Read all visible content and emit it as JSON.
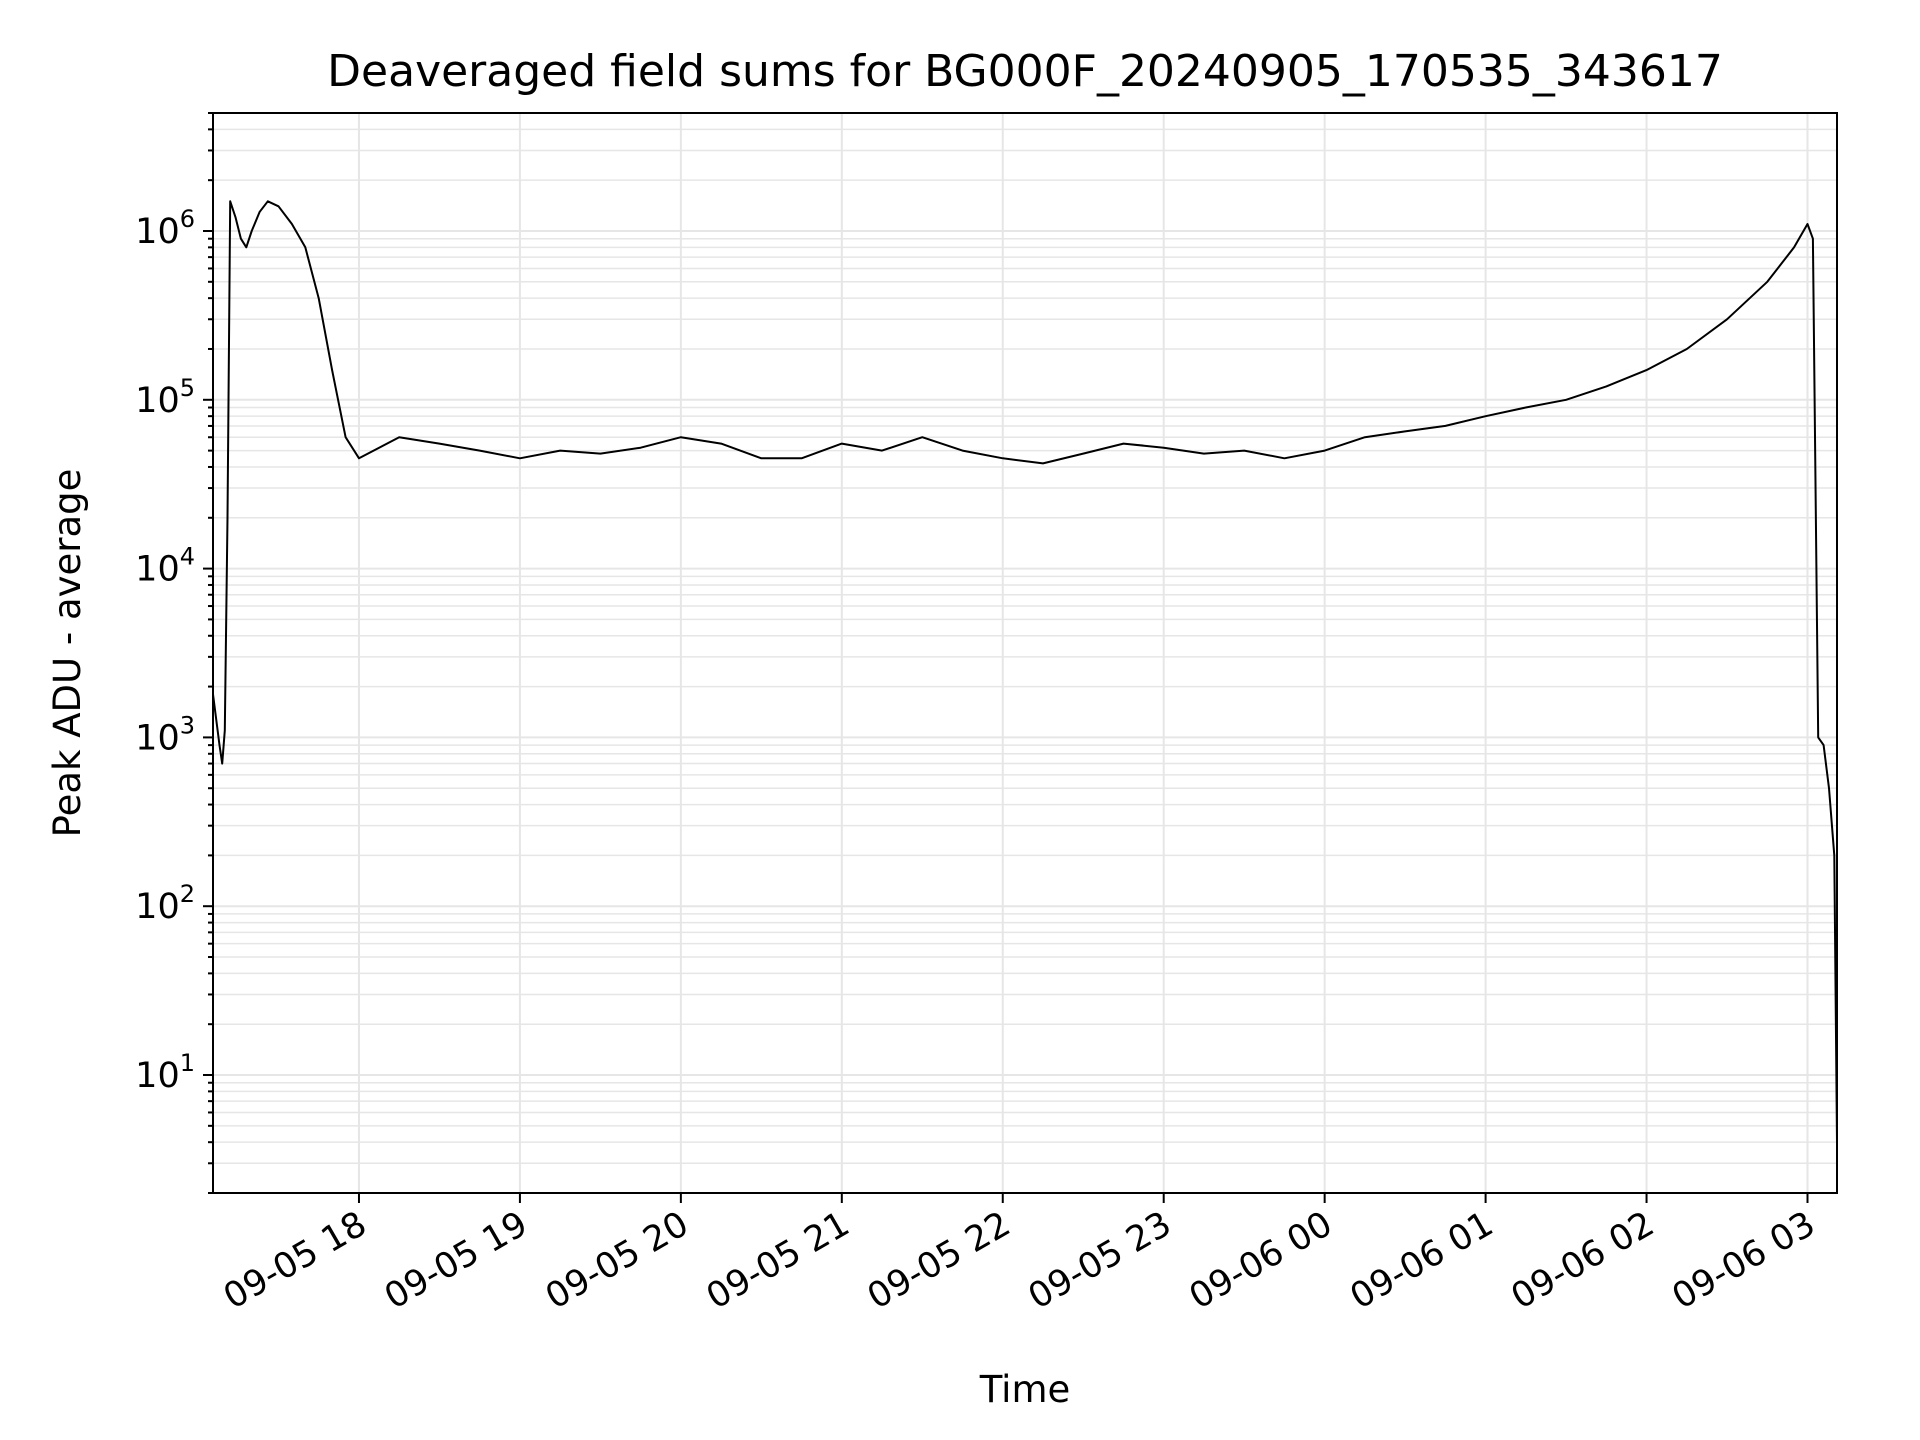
{
  "chart_data": {
    "type": "line",
    "title": "Deaveraged field sums for BG000F_20240905_170535_343617",
    "xlabel": "Time",
    "ylabel": "Peak ADU - average",
    "yscale": "log",
    "ylim": [
      2,
      5000000
    ],
    "xlim": [
      "2024-09-05 17:05:35",
      "2024-09-06 03:11:00"
    ],
    "grid": true,
    "colors": {
      "line": "#000000",
      "grid": "#e6e6e6",
      "axes": "#000000"
    },
    "xticks": [
      "2024-09-05 18:00",
      "2024-09-05 19:00",
      "2024-09-05 20:00",
      "2024-09-05 21:00",
      "2024-09-05 22:00",
      "2024-09-05 23:00",
      "2024-09-06 00:00",
      "2024-09-06 01:00",
      "2024-09-06 02:00",
      "2024-09-06 03:00"
    ],
    "xtick_labels": [
      "09-05 18",
      "09-05 19",
      "09-05 20",
      "09-05 21",
      "09-05 22",
      "09-05 23",
      "09-06 00",
      "09-06 01",
      "09-06 02",
      "09-06 03"
    ],
    "ytick_base": "10",
    "ytick_exponents": [
      "1",
      "2",
      "3",
      "4",
      "5",
      "6"
    ],
    "series": [
      {
        "x": [
          "2024-09-05 17:05:35",
          "2024-09-05 17:07",
          "2024-09-05 17:08",
          "2024-09-05 17:09",
          "2024-09-05 17:10",
          "2024-09-05 17:11",
          "2024-09-05 17:12",
          "2024-09-05 17:14",
          "2024-09-05 17:16",
          "2024-09-05 17:18",
          "2024-09-05 17:20",
          "2024-09-05 17:23",
          "2024-09-05 17:26",
          "2024-09-05 17:30",
          "2024-09-05 17:35",
          "2024-09-05 17:40",
          "2024-09-05 17:45",
          "2024-09-05 17:50",
          "2024-09-05 17:55",
          "2024-09-05 18:00",
          "2024-09-05 18:15",
          "2024-09-05 18:30",
          "2024-09-05 18:45",
          "2024-09-05 19:00",
          "2024-09-05 19:15",
          "2024-09-05 19:30",
          "2024-09-05 19:45",
          "2024-09-05 20:00",
          "2024-09-05 20:15",
          "2024-09-05 20:30",
          "2024-09-05 20:45",
          "2024-09-05 21:00",
          "2024-09-05 21:15",
          "2024-09-05 21:30",
          "2024-09-05 21:45",
          "2024-09-05 22:00",
          "2024-09-05 22:15",
          "2024-09-05 22:30",
          "2024-09-05 22:45",
          "2024-09-05 23:00",
          "2024-09-05 23:15",
          "2024-09-05 23:30",
          "2024-09-05 23:45",
          "2024-09-06 00:00",
          "2024-09-06 00:15",
          "2024-09-06 00:30",
          "2024-09-06 00:45",
          "2024-09-06 01:00",
          "2024-09-06 01:15",
          "2024-09-06 01:30",
          "2024-09-06 01:45",
          "2024-09-06 02:00",
          "2024-09-06 02:15",
          "2024-09-06 02:30",
          "2024-09-06 02:45",
          "2024-09-06 02:55",
          "2024-09-06 03:00",
          "2024-09-06 03:02",
          "2024-09-06 03:04",
          "2024-09-06 03:06",
          "2024-09-06 03:08",
          "2024-09-06 03:10",
          "2024-09-06 03:11"
        ],
        "y": [
          1800,
          1200,
          900,
          700,
          1100,
          20000,
          1500000,
          1200000,
          900000,
          800000,
          1000000,
          1300000,
          1500000,
          1400000,
          1100000,
          800000,
          400000,
          150000,
          60000,
          45000,
          60000,
          55000,
          50000,
          45000,
          50000,
          48000,
          52000,
          60000,
          55000,
          45000,
          45000,
          55000,
          50000,
          60000,
          50000,
          45000,
          42000,
          48000,
          55000,
          52000,
          48000,
          50000,
          45000,
          50000,
          60000,
          65000,
          70000,
          80000,
          90000,
          100000,
          120000,
          150000,
          200000,
          300000,
          500000,
          800000,
          1100000,
          900000,
          1000,
          900,
          500,
          200,
          4
        ]
      }
    ]
  }
}
